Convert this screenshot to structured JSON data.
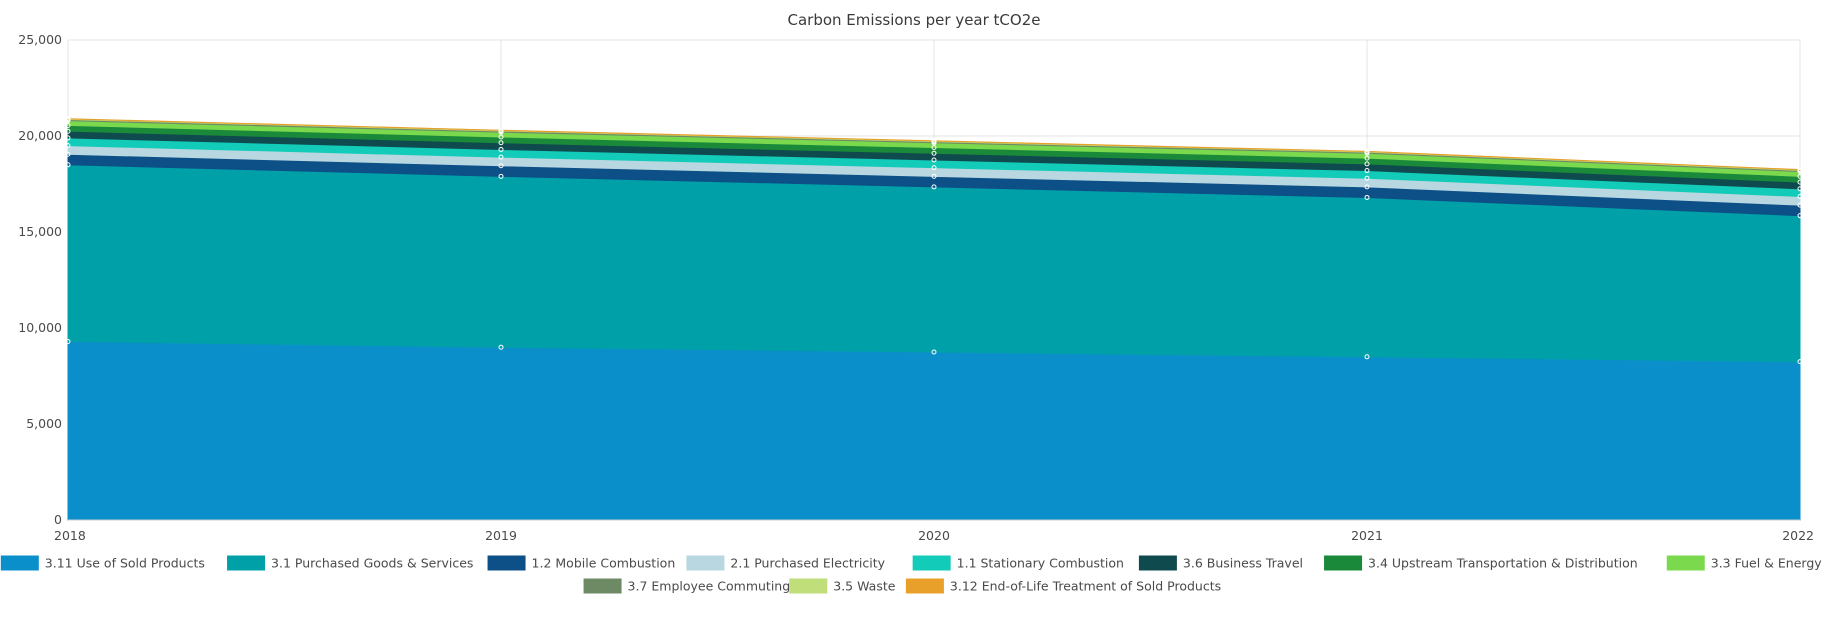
{
  "chart_data": {
    "type": "area",
    "stacked": true,
    "title": "Carbon Emissions per year tCO2e",
    "xlabel": "",
    "ylabel": "",
    "x": [
      "2018",
      "2019",
      "2020",
      "2021",
      "2022"
    ],
    "ylim": [
      0,
      25000
    ],
    "yticks": [
      "0",
      "5,000",
      "10,000",
      "15,000",
      "20,000",
      "25,000"
    ],
    "grid": true,
    "legend_position": "bottom",
    "series": [
      {
        "name": "3.11 Use of Sold Products",
        "color": "#0b8fcb",
        "values": [
          9300,
          9000,
          8750,
          8500,
          8250
        ]
      },
      {
        "name": "3.1 Purchased Goods & Services",
        "color": "#00a0a8",
        "values": [
          9200,
          8900,
          8600,
          8300,
          7600
        ]
      },
      {
        "name": "1.2 Mobile Combustion",
        "color": "#0d4f87",
        "values": [
          550,
          550,
          550,
          550,
          550
        ]
      },
      {
        "name": "2.1 Purchased Electricity",
        "color": "#b8d7e0",
        "values": [
          450,
          450,
          450,
          450,
          450
        ]
      },
      {
        "name": "1.1 Stationary Combustion",
        "color": "#12cbb8",
        "values": [
          400,
          400,
          400,
          400,
          400
        ]
      },
      {
        "name": "3.6 Business Travel",
        "color": "#0f4a4f",
        "values": [
          350,
          350,
          350,
          350,
          350
        ]
      },
      {
        "name": "3.4 Upstream Transportation & Distribution",
        "color": "#1a8a3a",
        "values": [
          300,
          300,
          300,
          300,
          300
        ]
      },
      {
        "name": "3.3 Fuel & Energy",
        "color": "#7ad94c",
        "values": [
          250,
          250,
          250,
          250,
          250
        ]
      },
      {
        "name": "3.7 Employee Commuting",
        "color": "#6e8a65",
        "values": [
          60,
          60,
          60,
          60,
          60
        ]
      },
      {
        "name": "3.5 Waste",
        "color": "#c0de7a",
        "values": [
          30,
          30,
          30,
          30,
          30
        ]
      },
      {
        "name": "3.12 End-of-Life Treatment of Sold Products",
        "color": "#e8a02a",
        "values": [
          10,
          10,
          10,
          10,
          10
        ]
      }
    ]
  }
}
